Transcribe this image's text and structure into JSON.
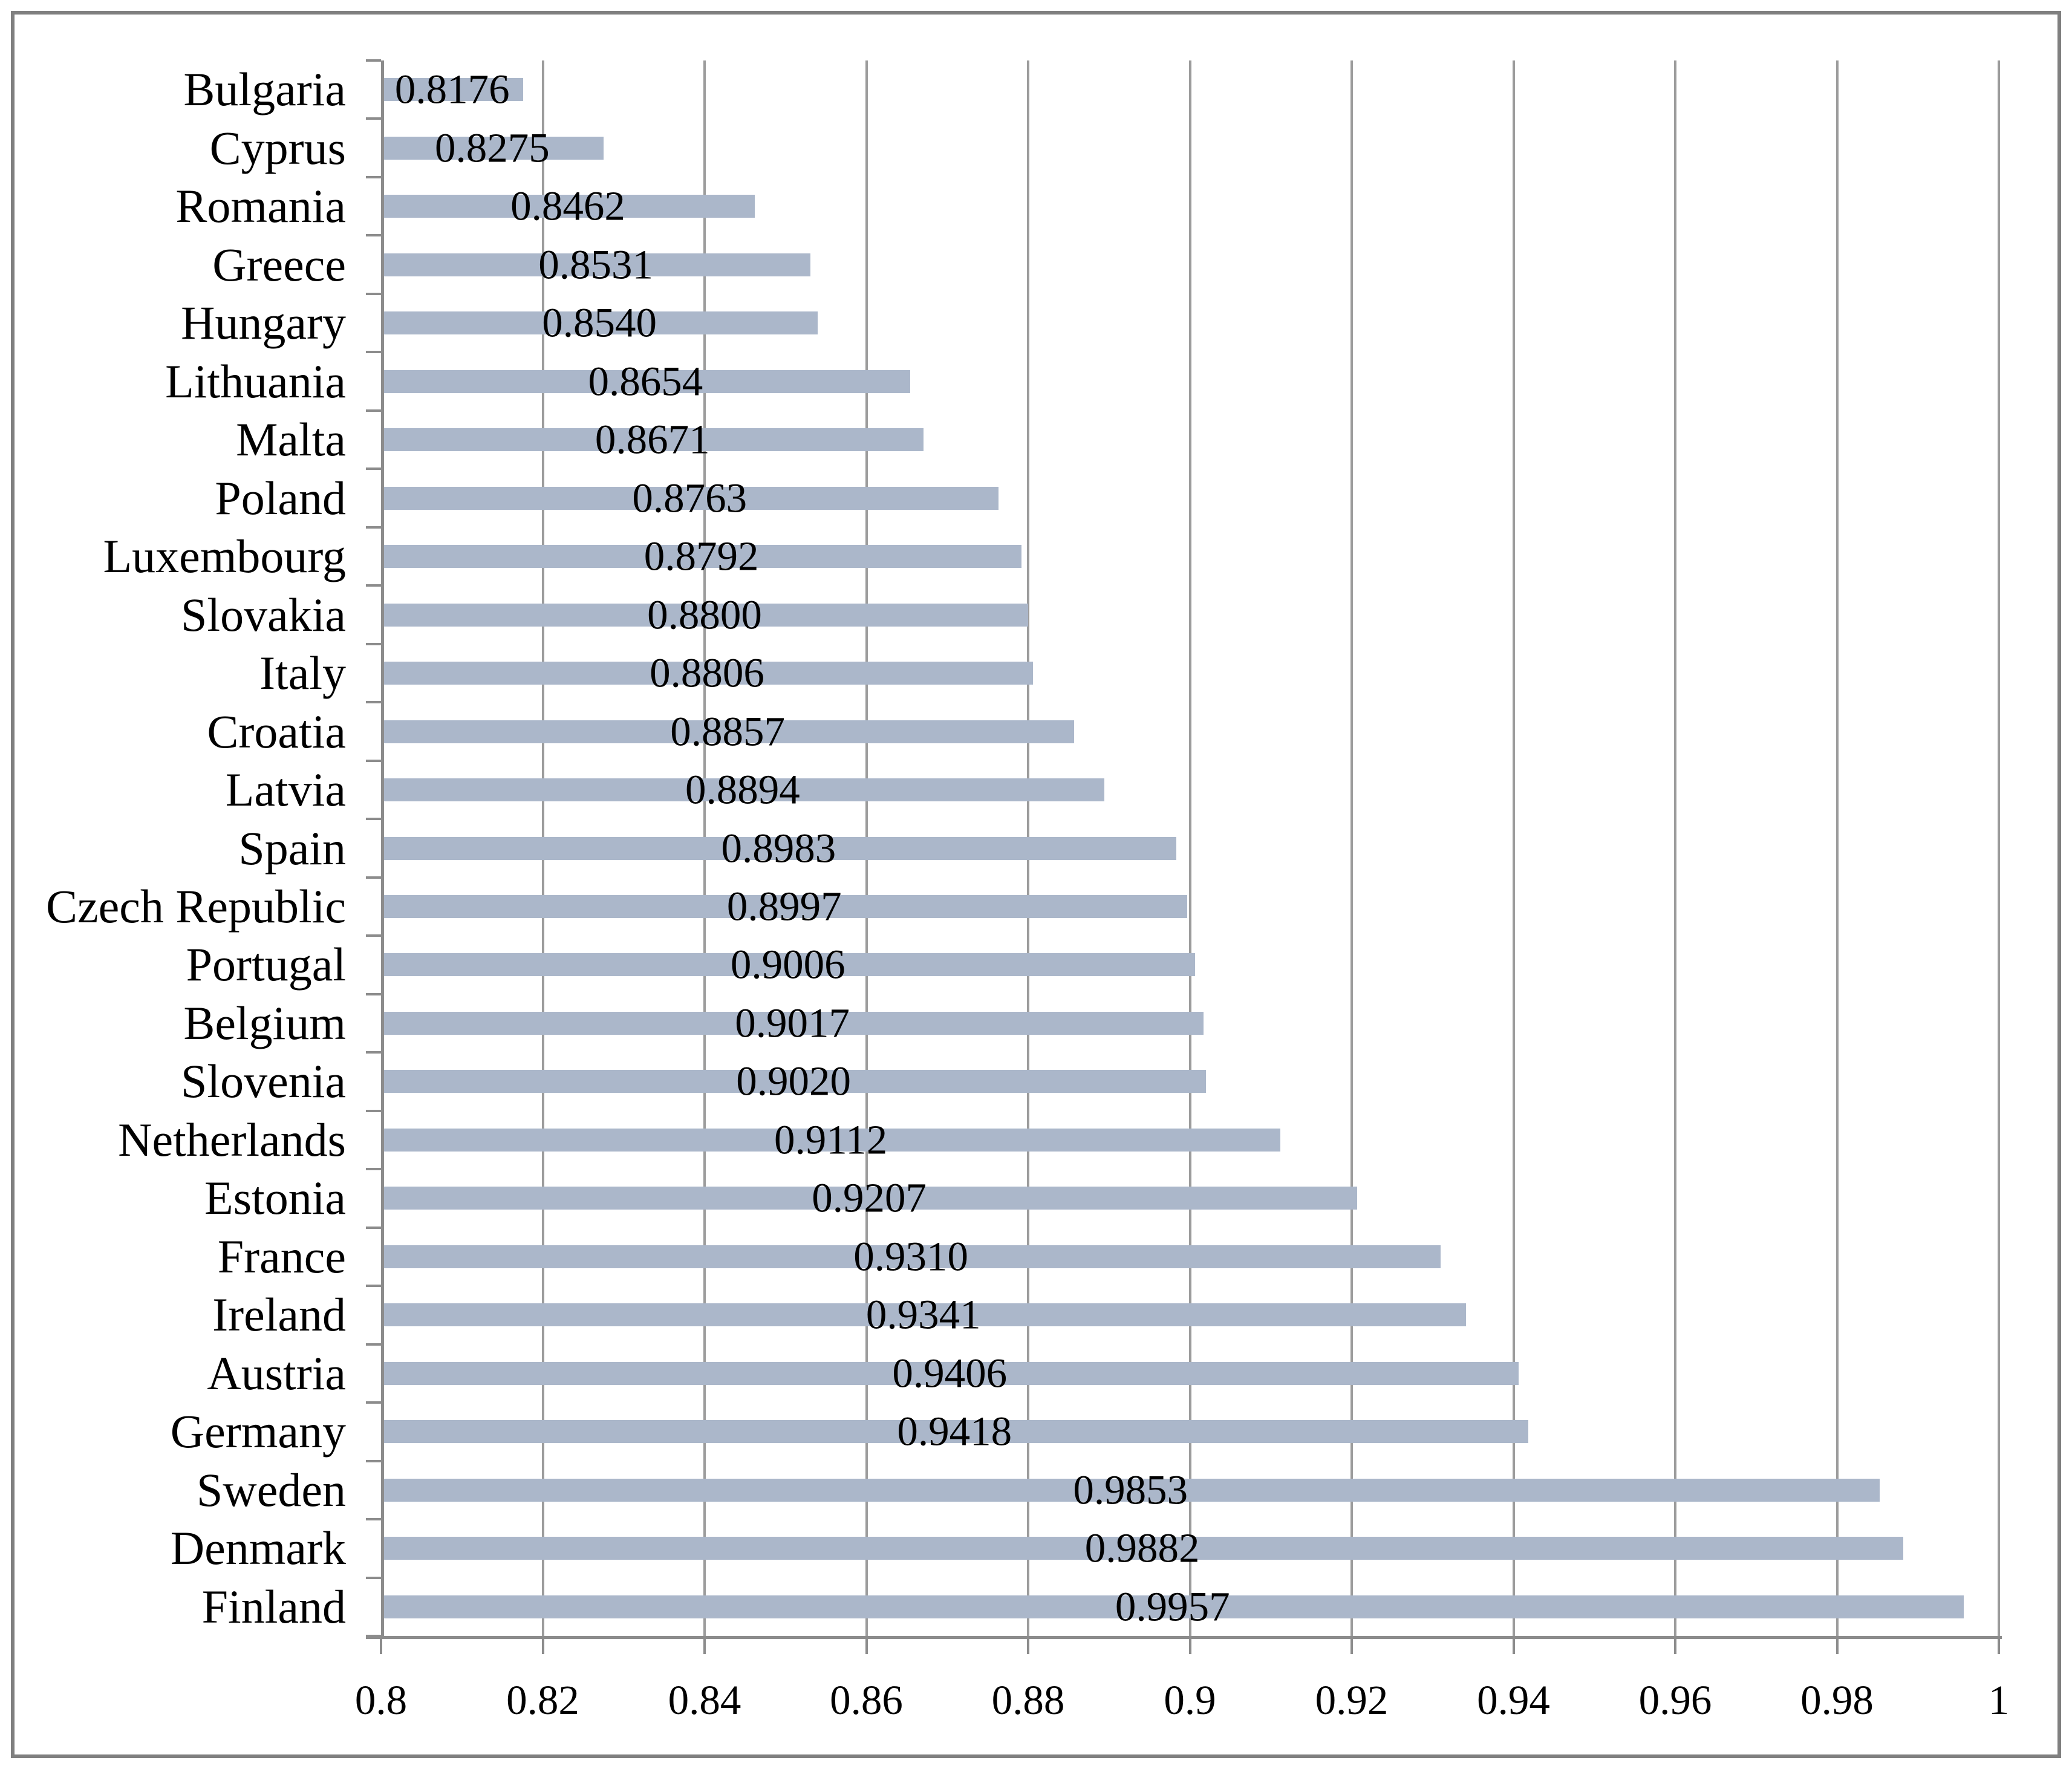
{
  "chart_data": {
    "type": "bar",
    "orientation": "horizontal",
    "title": "",
    "categories": [
      "Bulgaria",
      "Cyprus",
      "Romania",
      "Greece",
      "Hungary",
      "Lithuania",
      "Malta",
      "Poland",
      "Luxembourg",
      "Slovakia",
      "Italy",
      "Croatia",
      "Latvia",
      "Spain",
      "Czech Republic",
      "Portugal",
      "Belgium",
      "Slovenia",
      "Netherlands",
      "Estonia",
      "France",
      "Ireland",
      "Austria",
      "Germany",
      "Sweden",
      "Denmark",
      "Finland"
    ],
    "values": [
      0.8176,
      0.8275,
      0.8462,
      0.8531,
      0.854,
      0.8654,
      0.8671,
      0.8763,
      0.8792,
      0.88,
      0.8806,
      0.8857,
      0.8894,
      0.8983,
      0.8997,
      0.9006,
      0.9017,
      0.902,
      0.9112,
      0.9207,
      0.931,
      0.9341,
      0.9406,
      0.9418,
      0.9853,
      0.9882,
      0.9957
    ],
    "value_labels": [
      "0.8176",
      "0.8275",
      "0.8462",
      "0.8531",
      "0.8540",
      "0.8654",
      "0.8671",
      "0.8763",
      "0.8792",
      "0.8800",
      "0.8806",
      "0.8857",
      "0.8894",
      "0.8983",
      "0.8997",
      "0.9006",
      "0.9017",
      "0.9020",
      "0.9112",
      "0.9207",
      "0.9310",
      "0.9341",
      "0.9406",
      "0.9418",
      "0.9853",
      "0.9882",
      "0.9957"
    ],
    "value_label_position": "center",
    "x_axis": {
      "ticks": [
        "0.8",
        "0.82",
        "0.84",
        "0.86",
        "0.88",
        "0.9",
        "0.92",
        "0.94",
        "0.96",
        "0.98",
        "1"
      ],
      "min": 0.8,
      "max": 1.0
    },
    "xlim": [
      0.8,
      1.0
    ],
    "ylabel": "",
    "xlabel": "",
    "grid": "vertical",
    "legend": "none",
    "colors": {
      "bar": "#abb7ca",
      "gridline": "#9c9c9c",
      "axis": "#8c8c8c",
      "border": "#808080",
      "text": "#000000",
      "background": "#ffffff"
    }
  }
}
